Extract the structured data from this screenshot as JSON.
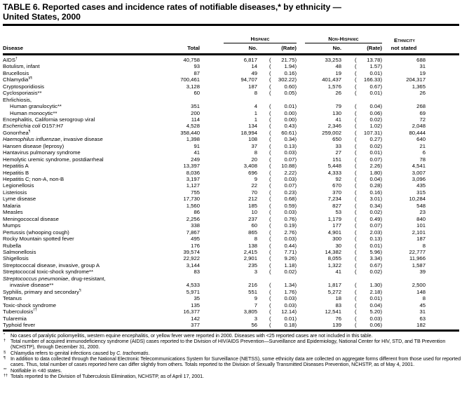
{
  "title": {
    "line1": "TABLE 6. Reported cases and incidence rates of notifiable diseases,* by ethnicity —",
    "line2": "United States, 2000"
  },
  "header": {
    "disease": "Disease",
    "total": "Total",
    "hispanic_group": "Hispanic",
    "non_hispanic_group": "Non-Hispanic",
    "ethnicity_line1": "Ethnicity",
    "ethnicity_line2": "not stated",
    "no_label_hispanic": "No.",
    "rate_label_hispanic": "(Rate)",
    "no_label_non_hispanic": "No.",
    "rate_label_non_hispanic": "(Rate)"
  },
  "table": {
    "rows": [
      {
        "n": [
          {
            "t": "AIDS"
          },
          {
            "t": "†",
            "sup": true
          }
        ],
        "t": "40,758",
        "hn": "6,817",
        "hr": "21.75",
        "nn": "33,253",
        "nr": "13.78",
        "e": "688"
      },
      {
        "n": [
          {
            "t": "Botulism, infant"
          }
        ],
        "t": "93",
        "hn": "14",
        "hr": "1.94",
        "nn": "48",
        "nr": "1.57",
        "e": "31"
      },
      {
        "n": [
          {
            "t": "Brucellosis"
          }
        ],
        "t": "87",
        "hn": "49",
        "hr": "0.16",
        "nn": "19",
        "nr": "0.01",
        "e": "19"
      },
      {
        "n": [
          {
            "t": "Chlamydia"
          },
          {
            "t": "§¶",
            "sup": true
          }
        ],
        "t": "700,461",
        "hn": "94,707",
        "hr": "302.22",
        "nn": "401,437",
        "nr": "166.33",
        "e": "204,317"
      },
      {
        "n": [
          {
            "t": "Cryptosporidiosis"
          }
        ],
        "t": "3,128",
        "hn": "187",
        "hr": "0.60",
        "nn": "1,576",
        "nr": "0.67",
        "e": "1,365"
      },
      {
        "n": [
          {
            "t": "Cyclosporiasis**"
          }
        ],
        "t": "60",
        "hn": "8",
        "hr": "0.05",
        "nn": "26",
        "nr": "0.01",
        "e": "26"
      },
      {
        "n": [
          {
            "t": "Ehrlichiosis,"
          }
        ],
        "label": true
      },
      {
        "n": [
          {
            "t": "Human granulocytic**"
          }
        ],
        "indent": true,
        "t": "351",
        "hn": "4",
        "hr": "0.01",
        "nn": "79",
        "nr": "0.04",
        "e": "268"
      },
      {
        "n": [
          {
            "t": "Human monocytic**"
          }
        ],
        "indent": true,
        "t": "200",
        "hn": "1",
        "hr": "0.00",
        "nn": "130",
        "nr": "0.06",
        "e": "69"
      },
      {
        "n": [
          {
            "t": "Encephalitis, California serogroup viral"
          }
        ],
        "t": "114",
        "hn": "1",
        "hr": "0.00",
        "nn": "41",
        "nr": "0.02",
        "e": "72"
      },
      {
        "n": [
          {
            "t": "Escherichia coli",
            "i": true
          },
          {
            "t": " O157:H7"
          }
        ],
        "t": "4,528",
        "hn": "134",
        "hr": "0.43",
        "nn": "2,346",
        "nr": "1.02",
        "e": "2,048"
      },
      {
        "n": [
          {
            "t": "Gonorrhea"
          },
          {
            "t": "¶",
            "sup": true
          }
        ],
        "t": "358,440",
        "hn": "18,994",
        "hr": "60.61",
        "nn": "259,002",
        "nr": "107.31",
        "e": "80,444"
      },
      {
        "n": [
          {
            "t": "Haemophilus influenzae",
            "i": true
          },
          {
            "t": ", invasive disease"
          }
        ],
        "t": "1,398",
        "hn": "108",
        "hr": "0.34",
        "nn": "650",
        "nr": "0.27",
        "e": "640"
      },
      {
        "n": [
          {
            "t": "Hansen disease (leprosy)"
          }
        ],
        "t": "91",
        "hn": "37",
        "hr": "0.13",
        "nn": "33",
        "nr": "0.02",
        "e": "21"
      },
      {
        "n": [
          {
            "t": "Hantavirus pulmonary syndrome"
          }
        ],
        "t": "41",
        "hn": "8",
        "hr": "0.03",
        "nn": "27",
        "nr": "0.01",
        "e": "6"
      },
      {
        "n": [
          {
            "t": "Hemolytic uremic syndrome, postdiarrheal"
          }
        ],
        "t": "249",
        "hn": "20",
        "hr": "0.07",
        "nn": "151",
        "nr": "0.07",
        "e": "78"
      },
      {
        "n": [
          {
            "t": "Hepatitis A"
          }
        ],
        "t": "13,397",
        "hn": "3,408",
        "hr": "10.88",
        "nn": "5,448",
        "nr": "2.26",
        "e": "4,541"
      },
      {
        "n": [
          {
            "t": "Hepatitis B"
          }
        ],
        "t": "8,036",
        "hn": "696",
        "hr": "2.22",
        "nn": "4,333",
        "nr": "1.80",
        "e": "3,007"
      },
      {
        "n": [
          {
            "t": "Hepatitis C; non-A, non-B"
          }
        ],
        "t": "3,197",
        "hn": "9",
        "hr": "0.03",
        "nn": "92",
        "nr": "0.04",
        "e": "3,096"
      },
      {
        "n": [
          {
            "t": "Legionellosis"
          }
        ],
        "t": "1,127",
        "hn": "22",
        "hr": "0.07",
        "nn": "670",
        "nr": "0.28",
        "e": "435"
      },
      {
        "n": [
          {
            "t": "Listeriosis"
          }
        ],
        "t": "755",
        "hn": "70",
        "hr": "0.23",
        "nn": "370",
        "nr": "0.16",
        "e": "315"
      },
      {
        "n": [
          {
            "t": "Lyme disease"
          }
        ],
        "t": "17,730",
        "hn": "212",
        "hr": "0.68",
        "nn": "7,234",
        "nr": "3.01",
        "e": "10,284"
      },
      {
        "n": [
          {
            "t": "Malaria"
          }
        ],
        "t": "1,560",
        "hn": "185",
        "hr": "0.59",
        "nn": "827",
        "nr": "0.34",
        "e": "548"
      },
      {
        "n": [
          {
            "t": "Measles"
          }
        ],
        "t": "86",
        "hn": "10",
        "hr": "0.03",
        "nn": "53",
        "nr": "0.02",
        "e": "23"
      },
      {
        "n": [
          {
            "t": "Meningococcal disease"
          }
        ],
        "t": "2,256",
        "hn": "237",
        "hr": "0.76",
        "nn": "1,179",
        "nr": "0.49",
        "e": "840"
      },
      {
        "n": [
          {
            "t": "Mumps"
          }
        ],
        "t": "338",
        "hn": "60",
        "hr": "0.19",
        "nn": "177",
        "nr": "0.07",
        "e": "101"
      },
      {
        "n": [
          {
            "t": "Pertussis (whooping cough)"
          }
        ],
        "t": "7,867",
        "hn": "865",
        "hr": "2.76",
        "nn": "4,901",
        "nr": "2.03",
        "e": "2,101"
      },
      {
        "n": [
          {
            "t": "Rocky Mountain spotted fever"
          }
        ],
        "t": "495",
        "hn": "8",
        "hr": "0.03",
        "nn": "300",
        "nr": "0.13",
        "e": "187"
      },
      {
        "n": [
          {
            "t": "Rubella"
          }
        ],
        "t": "176",
        "hn": "138",
        "hr": "0.44",
        "nn": "30",
        "nr": "0.01",
        "e": "8"
      },
      {
        "n": [
          {
            "t": "Salmonellosis"
          }
        ],
        "t": "39,574",
        "hn": "2,415",
        "hr": "7.71",
        "nn": "14,382",
        "nr": "5.96",
        "e": "22,777"
      },
      {
        "n": [
          {
            "t": "Shigellosis"
          }
        ],
        "t": "22,922",
        "hn": "2,901",
        "hr": "9.26",
        "nn": "8,055",
        "nr": "3.34",
        "e": "11,966"
      },
      {
        "n": [
          {
            "t": "Streptococcal disease, invasive, group A"
          }
        ],
        "t": "3,144",
        "hn": "235",
        "hr": "1.18",
        "nn": "1,322",
        "nr": "0.67",
        "e": "1,587"
      },
      {
        "n": [
          {
            "t": "Streptococcal toxic-shock syndrome**"
          }
        ],
        "t": "83",
        "hn": "3",
        "hr": "0.02",
        "nn": "41",
        "nr": "0.02",
        "e": "39"
      },
      {
        "n": [
          {
            "t": "Streptococcus pneumoniae",
            "i": true
          },
          {
            "t": ", drug-resistant,"
          }
        ],
        "label": true
      },
      {
        "n": [
          {
            "t": "invasive disease**"
          }
        ],
        "indent": true,
        "t": "4,533",
        "hn": "216",
        "hr": "1.34",
        "nn": "1,817",
        "nr": "1.30",
        "e": "2,500"
      },
      {
        "n": [
          {
            "t": "Syphilis, primary and secondary"
          },
          {
            "t": "¶",
            "sup": true
          }
        ],
        "t": "5,971",
        "hn": "551",
        "hr": "1.76",
        "nn": "5,272",
        "nr": "2.18",
        "e": "148"
      },
      {
        "n": [
          {
            "t": "Tetanus"
          }
        ],
        "t": "35",
        "hn": "9",
        "hr": "0.03",
        "nn": "18",
        "nr": "0.01",
        "e": "8"
      },
      {
        "n": [
          {
            "t": "Toxic-shock syndrome"
          }
        ],
        "t": "135",
        "hn": "7",
        "hr": "0.03",
        "nn": "83",
        "nr": "0.04",
        "e": "45"
      },
      {
        "n": [
          {
            "t": "Tuberculosis"
          },
          {
            "t": "††",
            "sup": true
          }
        ],
        "t": "16,377",
        "hn": "3,805",
        "hr": "12.14",
        "nn": "12,541",
        "nr": "5.20",
        "e": "31"
      },
      {
        "n": [
          {
            "t": "Tularemia"
          }
        ],
        "t": "142",
        "hn": "3",
        "hr": "0.01",
        "nn": "76",
        "nr": "0.03",
        "e": "63"
      },
      {
        "n": [
          {
            "t": "Typhoid fever"
          }
        ],
        "t": "377",
        "hn": "56",
        "hr": "0.18",
        "nn": "139",
        "nr": "0.06",
        "e": "182"
      }
    ]
  },
  "footnotes": [
    {
      "m": "*",
      "segs": [
        {
          "t": "No cases of paralytic poliomyelitis, western equine encephalitis, or yellow fever were reported in 2000. Diseases with <25 reported cases are not included in this table."
        }
      ]
    },
    {
      "m": "†",
      "segs": [
        {
          "t": "Total number of acquired immunodeficiency syndrome (AIDS) cases reported to the Division of HIV/AIDS Prevention—Surveillance and Epidemiology, National Center for HIV, STD, and TB Prevention (NCHSTP), through December 31, 2000."
        }
      ]
    },
    {
      "m": "§",
      "segs": [
        {
          "t": "Chlamydia refers to genital infections caused by "
        },
        {
          "t": "C. trachomatis",
          "i": true
        },
        {
          "t": "."
        }
      ]
    },
    {
      "m": "¶",
      "segs": [
        {
          "t": "In addition to data collected through the National Electronic Telecommunications System for Surveillance (NETSS), some ethnicity data are collected on aggregate forms different from those used for reported cases.  Thus, total number of cases reported here can differ slightly from others.  Totals reported to the Division of Sexually Transmitted Diseases Prevention, NCHSTP, as of May 4, 2001."
        }
      ]
    },
    {
      "m": "**",
      "segs": [
        {
          "t": "Notifiable in <40 states."
        }
      ]
    },
    {
      "m": "††",
      "segs": [
        {
          "t": "Totals reported to the Division of Tuberculosis Elimination, NCHSTP, as of April 17, 2001."
        }
      ]
    }
  ]
}
